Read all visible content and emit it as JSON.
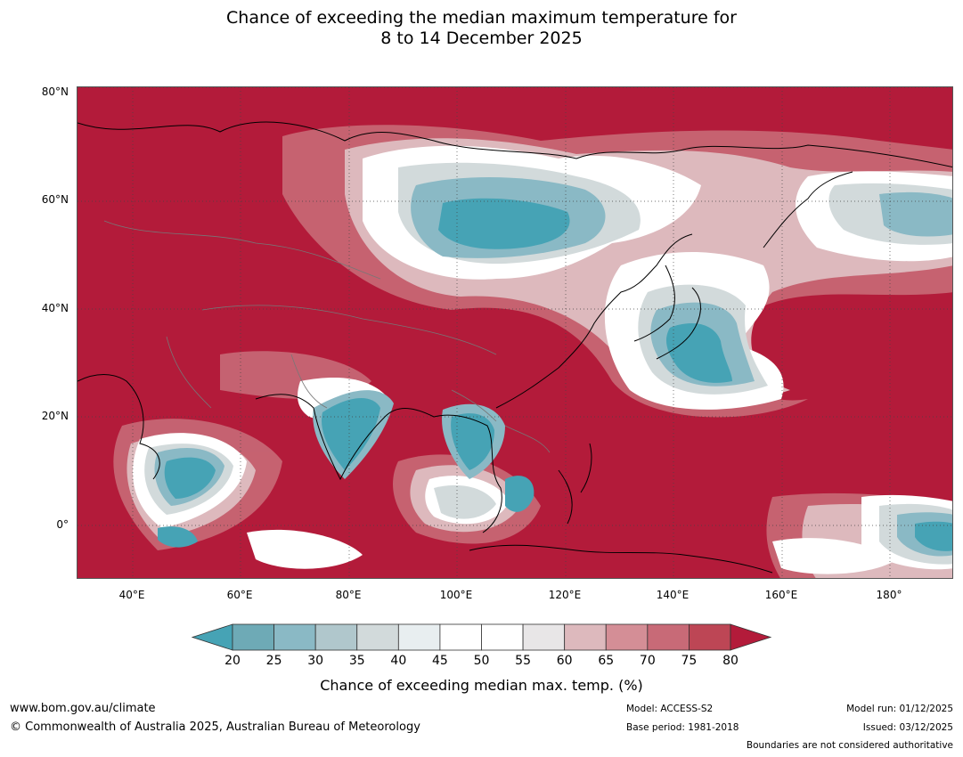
{
  "title_line1": "Chance of exceeding the median maximum temperature for",
  "title_line2": "8 to 14 December 2025",
  "latitude_labels": [
    "80°N",
    "60°N",
    "40°N",
    "20°N",
    "0°"
  ],
  "longitude_labels": [
    "40°E",
    "60°E",
    "80°E",
    "100°E",
    "120°E",
    "140°E",
    "160°E",
    "180°"
  ],
  "colorbar": {
    "title": "Chance of exceeding median max. temp. (%)",
    "ticks": [
      "20",
      "25",
      "30",
      "35",
      "40",
      "45",
      "50",
      "55",
      "60",
      "65",
      "70",
      "75",
      "80"
    ],
    "colors": [
      "#46a3b5",
      "#6eaab6",
      "#8ab9c5",
      "#b0c7cc",
      "#d2dadb",
      "#e8eef0",
      "#ffffff",
      "#ffffff",
      "#e8e6e7",
      "#ddb9bd",
      "#d48e96",
      "#c86a77",
      "#bd4655",
      "#b31b3a"
    ]
  },
  "footer": {
    "website": "www.bom.gov.au/climate",
    "copyright": "© Commonwealth of Australia 2025, Australian Bureau of Meteorology",
    "model": "Model: ACCESS-S2",
    "base_period": "Base period: 1981-2018",
    "model_run": "Model run: 01/12/2025",
    "issued": "Issued: 03/12/2025",
    "boundaries_note": "Boundaries are not considered authoritative"
  }
}
